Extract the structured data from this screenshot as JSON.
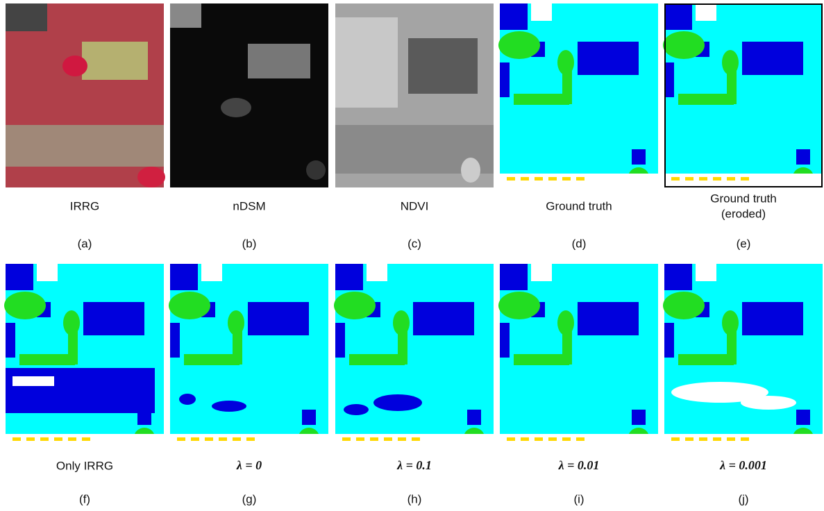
{
  "panels": [
    {
      "caption": "IRRG",
      "letter": "(a)"
    },
    {
      "caption": "nDSM",
      "letter": "(b)"
    },
    {
      "caption": "NDVI",
      "letter": "(c)"
    },
    {
      "caption": "Ground truth",
      "letter": "(d)"
    },
    {
      "caption": "Ground truth",
      "subcaption": "(eroded)",
      "letter": "(e)"
    },
    {
      "caption": "Only IRRG",
      "letter": "(f)"
    },
    {
      "caption": "λ = 0",
      "letter": "(g)"
    },
    {
      "caption": "λ = 0.1",
      "letter": "(h)"
    },
    {
      "caption": "λ = 0.01",
      "letter": "(i)"
    },
    {
      "caption": "λ = 0.001",
      "letter": "(j)"
    }
  ]
}
